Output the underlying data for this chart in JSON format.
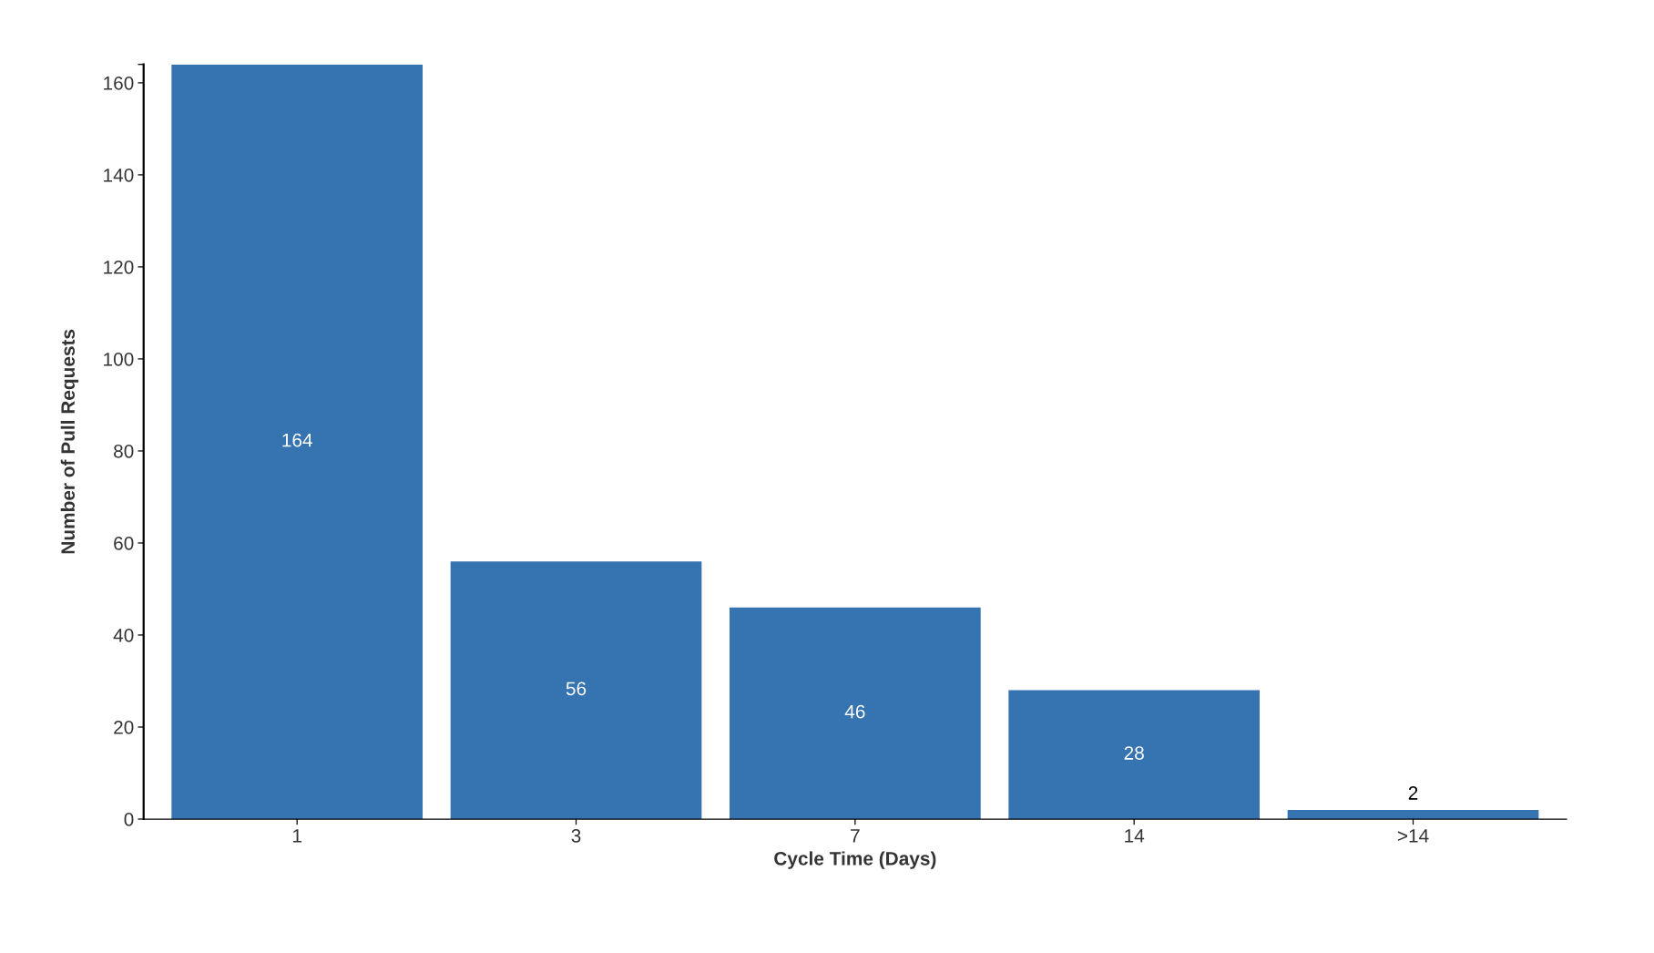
{
  "chart_data": {
    "type": "bar",
    "xlabel": "Cycle Time (Days)",
    "ylabel": "Number of Pull Requests",
    "categories": [
      "1",
      "3",
      "7",
      "14",
      ">14"
    ],
    "values": [
      164,
      56,
      46,
      28,
      2
    ],
    "color": "#3573b1",
    "ylim": [
      0,
      164
    ],
    "yticks": [
      0,
      20,
      40,
      60,
      80,
      100,
      120,
      140,
      160,
      {
        "value": 164,
        "label": null
      }
    ],
    "data_labels": true
  }
}
